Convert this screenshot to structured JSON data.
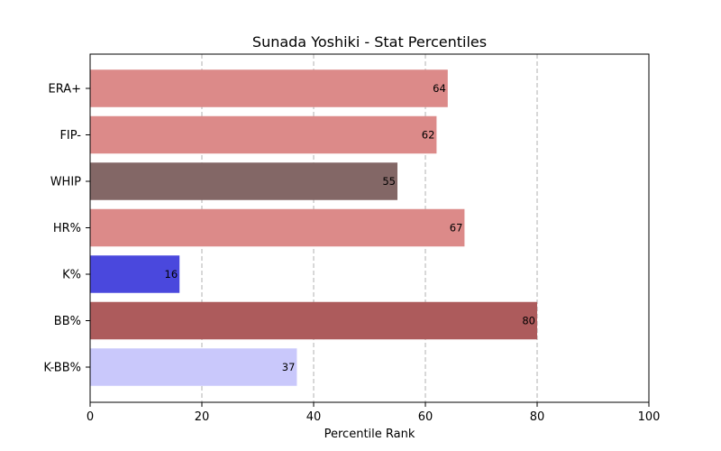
{
  "chart_data": {
    "type": "bar",
    "orientation": "horizontal",
    "title": "Sunada Yoshiki - Stat Percentiles",
    "xlabel": "Percentile Rank",
    "ylabel": "",
    "xlim": [
      0,
      100
    ],
    "xticks": [
      0,
      20,
      40,
      60,
      80,
      100
    ],
    "grid": "x, dashed",
    "categories": [
      "ERA+",
      "FIP-",
      "WHIP",
      "HR%",
      "K%",
      "BB%",
      "K-BB%"
    ],
    "values": [
      64,
      62,
      55,
      67,
      16,
      80,
      37
    ],
    "colors": [
      "#dc8a89",
      "#dc8a89",
      "#836766",
      "#dc8a89",
      "#4a48dd",
      "#ad5b5c",
      "#c9c8fb"
    ]
  }
}
